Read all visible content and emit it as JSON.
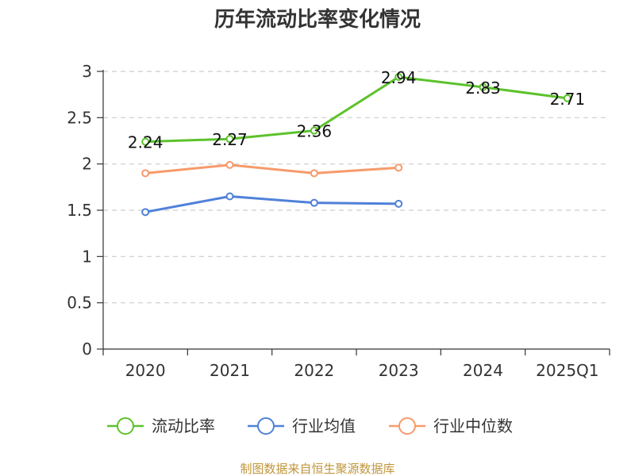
{
  "title": "历年流动比率变化情况",
  "source": "制图数据来自恒生聚源数据库",
  "chart_data": {
    "type": "line",
    "categories": [
      "2020",
      "2021",
      "2022",
      "2023",
      "2024",
      "2025Q1"
    ],
    "ylim": [
      0,
      3
    ],
    "yticks": [
      "0",
      "0.5",
      "1",
      "1.5",
      "2",
      "2.5",
      "3"
    ],
    "grid": true,
    "legend_position": "bottom",
    "series": [
      {
        "name": "流动比率",
        "color": "#5cc22c",
        "values": [
          2.24,
          2.27,
          2.36,
          2.94,
          2.83,
          2.71
        ],
        "labels": [
          "2.24",
          "2.27",
          "2.36",
          "2.94",
          "2.83",
          "2.71"
        ]
      },
      {
        "name": "行业均值",
        "color": "#4f81d9",
        "values": [
          1.48,
          1.65,
          1.58,
          1.57,
          null,
          null
        ]
      },
      {
        "name": "行业中位数",
        "color": "#f79a6b",
        "values": [
          1.9,
          1.99,
          1.9,
          1.96,
          null,
          null
        ]
      }
    ]
  }
}
